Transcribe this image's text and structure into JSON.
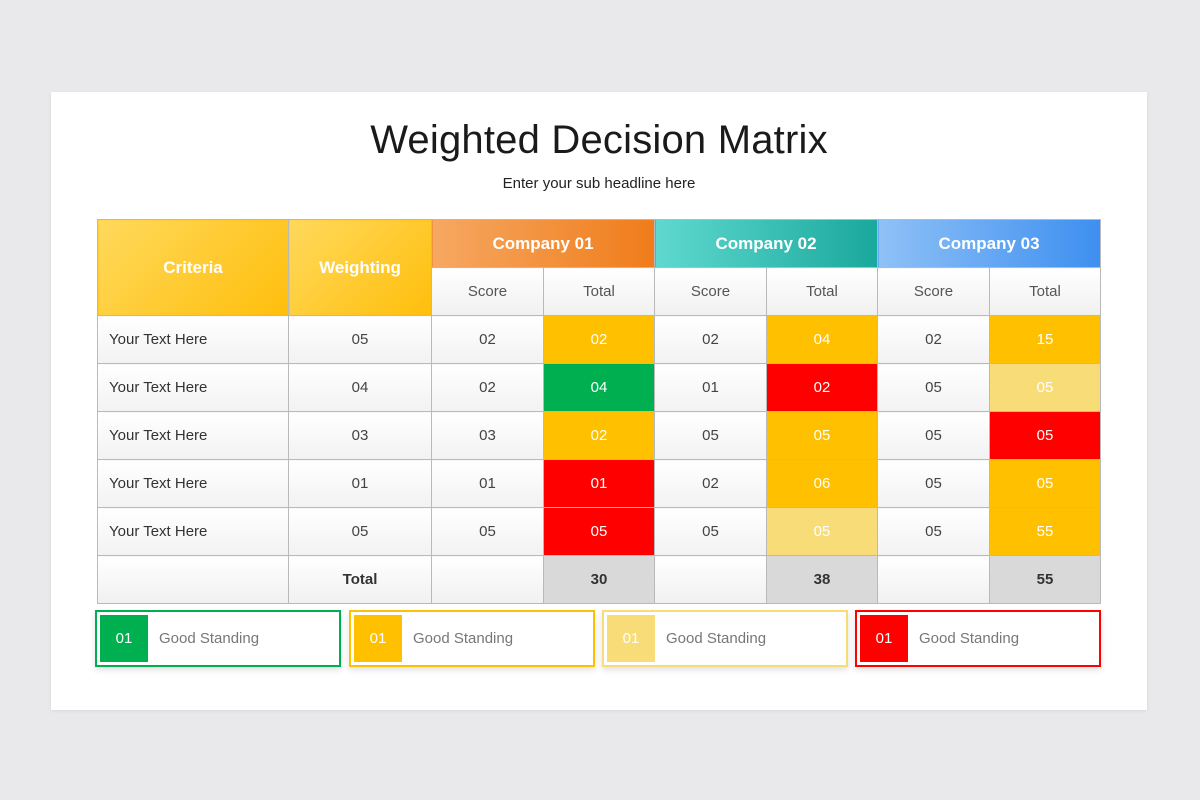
{
  "title": "Weighted Decision Matrix",
  "subtitle": "Enter your sub headline here",
  "header": {
    "criteria": "Criteria",
    "weighting": "Weighting",
    "companies": [
      "Company 01",
      "Company 02",
      "Company 03"
    ],
    "score": "Score",
    "total": "Total"
  },
  "rows": [
    {
      "criteria": "Your Text Here",
      "weight": "05",
      "c1_score": "02",
      "c1_total": "02",
      "c2_score": "02",
      "c2_total": "04",
      "c3_score": "02",
      "c3_total": "15"
    },
    {
      "criteria": "Your Text Here",
      "weight": "04",
      "c1_score": "02",
      "c1_total": "04",
      "c2_score": "01",
      "c2_total": "02",
      "c3_score": "05",
      "c3_total": "05"
    },
    {
      "criteria": "Your Text Here",
      "weight": "03",
      "c1_score": "03",
      "c1_total": "02",
      "c2_score": "05",
      "c2_total": "05",
      "c3_score": "05",
      "c3_total": "05"
    },
    {
      "criteria": "Your Text Here",
      "weight": "01",
      "c1_score": "01",
      "c1_total": "01",
      "c2_score": "02",
      "c2_total": "06",
      "c3_score": "05",
      "c3_total": "05"
    },
    {
      "criteria": "Your Text Here",
      "weight": "05",
      "c1_score": "05",
      "c1_total": "05",
      "c2_score": "05",
      "c2_total": "05",
      "c3_score": "05",
      "c3_total": "55"
    }
  ],
  "row_colors": [
    {
      "c1": "#ffc000",
      "c2": "#ffc000",
      "c3": "#ffc000"
    },
    {
      "c1": "#00b050",
      "c2": "#ff0000",
      "c3": "#f7dc77"
    },
    {
      "c1": "#ffc000",
      "c2": "#ffc000",
      "c3": "#ff0000"
    },
    {
      "c1": "#ff0000",
      "c2": "#ffc000",
      "c3": "#ffc000"
    },
    {
      "c1": "#ff0000",
      "c2": "#f7dc77",
      "c3": "#ffc000"
    }
  ],
  "totals": {
    "label": "Total",
    "c1": "30",
    "c2": "38",
    "c3": "55"
  },
  "legend": [
    {
      "value": "01",
      "label": "Good Standing",
      "color": "#00b050"
    },
    {
      "value": "01",
      "label": "Good Standing",
      "color": "#ffc000"
    },
    {
      "value": "01",
      "label": "Good Standing",
      "color": "#f7dc77"
    },
    {
      "value": "01",
      "label": "Good Standing",
      "color": "#ff0000"
    }
  ]
}
